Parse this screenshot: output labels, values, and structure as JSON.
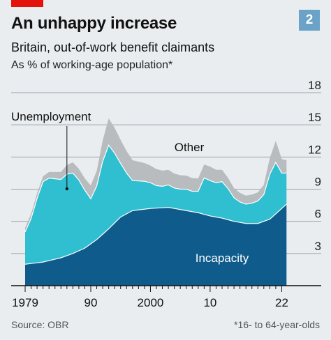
{
  "header": {
    "chart_number": "2",
    "title": "An unhappy increase",
    "subtitle": "Britain, out-of-work benefit claimants",
    "unit": "As % of working-age population*"
  },
  "footer": {
    "source": "Source: OBR",
    "footnote": "*16- to 64-year-olds"
  },
  "colors": {
    "incapacity": "#0f5c8c",
    "unemployment": "#2fbfd1",
    "other": "#b8bcbf",
    "gridline": "#9aa3aa",
    "background": "#e9edf0",
    "brand_red": "#e3120b",
    "badge": "#6aa3c7"
  },
  "chart_data": {
    "type": "area",
    "stacked": true,
    "x_axis": {
      "range": [
        1979,
        2023
      ],
      "ticks": [
        1979,
        1990,
        2000,
        2010,
        2022
      ],
      "tick_labels": [
        "1979",
        "90",
        "2000",
        "10",
        "22"
      ]
    },
    "y_axis": {
      "range": [
        0,
        18
      ],
      "ticks": [
        0,
        3,
        6,
        9,
        12,
        15,
        18
      ],
      "tick_labels": [
        "",
        "3",
        "6",
        "9",
        "12",
        "15",
        "18"
      ],
      "side": "right",
      "grid": true
    },
    "series": [
      {
        "name": "Incapacity",
        "color_key": "incapacity",
        "points": [
          [
            1979,
            2.0
          ],
          [
            1982,
            2.2
          ],
          [
            1985,
            2.6
          ],
          [
            1987,
            3.0
          ],
          [
            1989,
            3.5
          ],
          [
            1991,
            4.3
          ],
          [
            1993,
            5.3
          ],
          [
            1995,
            6.4
          ],
          [
            1997,
            7.0
          ],
          [
            2000,
            7.2
          ],
          [
            2003,
            7.3
          ],
          [
            2005,
            7.1
          ],
          [
            2008,
            6.8
          ],
          [
            2010,
            6.5
          ],
          [
            2012,
            6.3
          ],
          [
            2014,
            6.0
          ],
          [
            2016,
            5.8
          ],
          [
            2018,
            5.8
          ],
          [
            2019,
            6.0
          ],
          [
            2020,
            6.2
          ],
          [
            2021,
            6.7
          ],
          [
            2022,
            7.2
          ],
          [
            2022.8,
            7.6
          ]
        ]
      },
      {
        "name": "Unemployment",
        "color_key": "unemployment",
        "label_year": 1986,
        "label_value": 1.8,
        "points": [
          [
            1979,
            3.0
          ],
          [
            1980,
            4.2
          ],
          [
            1981,
            6.0
          ],
          [
            1982,
            7.5
          ],
          [
            1983,
            7.7
          ],
          [
            1984,
            7.5
          ],
          [
            1985,
            7.3
          ],
          [
            1986,
            7.6
          ],
          [
            1987,
            7.5
          ],
          [
            1988,
            6.6
          ],
          [
            1989,
            5.4
          ],
          [
            1990,
            4.2
          ],
          [
            1991,
            5.0
          ],
          [
            1992,
            6.8
          ],
          [
            1993,
            7.8
          ],
          [
            1994,
            6.5
          ],
          [
            1995,
            5.0
          ],
          [
            1996,
            3.8
          ],
          [
            1997,
            2.8
          ],
          [
            1998,
            2.7
          ],
          [
            1999,
            2.6
          ],
          [
            2000,
            2.4
          ],
          [
            2001,
            2.1
          ],
          [
            2002,
            2.0
          ],
          [
            2003,
            2.1
          ],
          [
            2004,
            1.9
          ],
          [
            2005,
            1.9
          ],
          [
            2006,
            2.0
          ],
          [
            2007,
            1.9
          ],
          [
            2008,
            2.0
          ],
          [
            2009,
            3.4
          ],
          [
            2010,
            3.3
          ],
          [
            2011,
            3.2
          ],
          [
            2012,
            3.4
          ],
          [
            2013,
            2.9
          ],
          [
            2014,
            2.2
          ],
          [
            2015,
            1.9
          ],
          [
            2016,
            1.8
          ],
          [
            2017,
            1.9
          ],
          [
            2018,
            2.1
          ],
          [
            2019,
            2.5
          ],
          [
            2020,
            4.2
          ],
          [
            2021,
            4.8
          ],
          [
            2022,
            3.3
          ],
          [
            2022.8,
            2.9
          ]
        ]
      },
      {
        "name": "Other",
        "color_key": "other",
        "label_year": 2011,
        "label_value": 1.2,
        "points": [
          [
            1979,
            0.4
          ],
          [
            1982,
            0.5
          ],
          [
            1985,
            0.7
          ],
          [
            1987,
            1.0
          ],
          [
            1989,
            1.1
          ],
          [
            1991,
            1.4
          ],
          [
            1993,
            2.5
          ],
          [
            1995,
            2.2
          ],
          [
            1997,
            1.9
          ],
          [
            2000,
            1.6
          ],
          [
            2003,
            1.4
          ],
          [
            2005,
            1.3
          ],
          [
            2008,
            1.2
          ],
          [
            2010,
            1.3
          ],
          [
            2012,
            1.1
          ],
          [
            2014,
            0.9
          ],
          [
            2016,
            0.8
          ],
          [
            2018,
            0.8
          ],
          [
            2019,
            0.9
          ],
          [
            2020,
            1.5
          ],
          [
            2021,
            2.0
          ],
          [
            2022,
            1.3
          ],
          [
            2022.8,
            1.2
          ]
        ]
      }
    ]
  }
}
